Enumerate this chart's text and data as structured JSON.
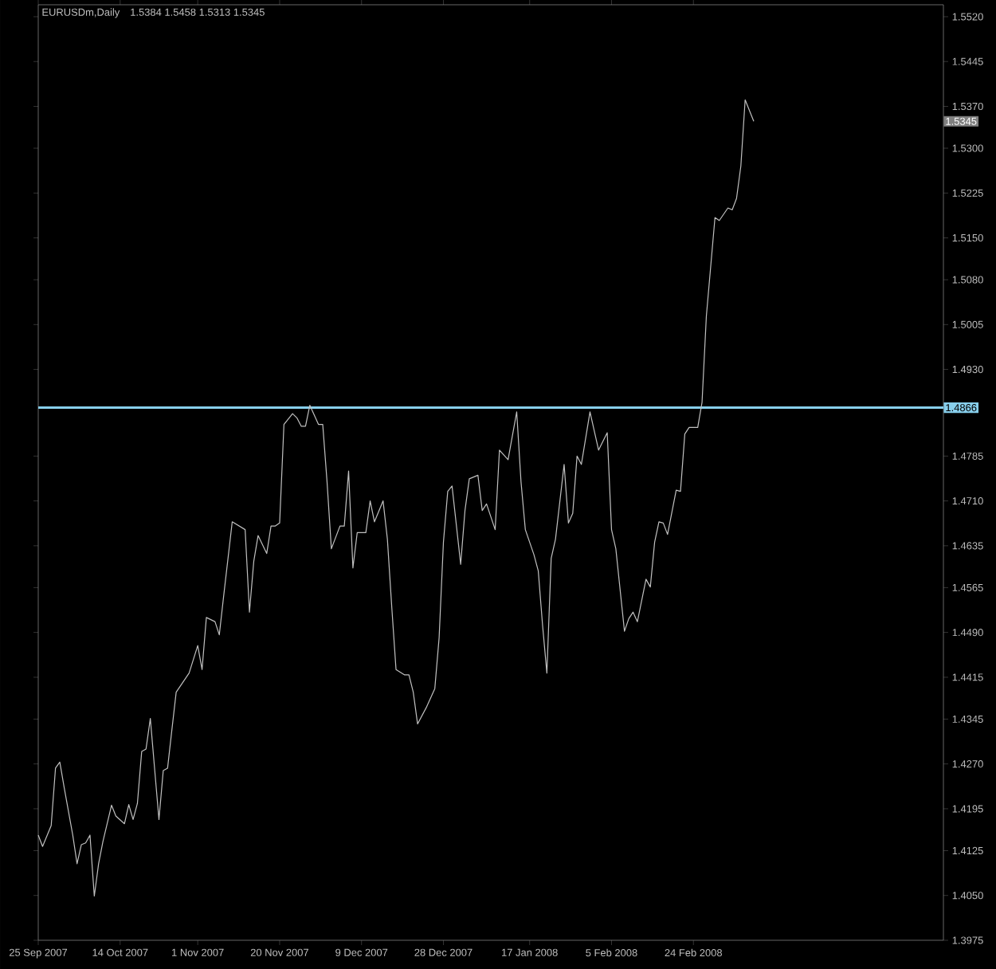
{
  "chart_data": {
    "type": "line",
    "title": "EURUSDm,Daily",
    "subtitle": "1.5384 1.5458 1.5313 1.5345",
    "series": [
      {
        "color": "#c0c0c0",
        "x": [
          "2007-09-25",
          "2007-09-26",
          "2007-09-28",
          "2007-09-29",
          "2007-09-30",
          "2007-10-01",
          "2007-10-03",
          "2007-10-04",
          "2007-10-05",
          "2007-10-06",
          "2007-10-07",
          "2007-10-08",
          "2007-10-09",
          "2007-10-10",
          "2007-10-12",
          "2007-10-13",
          "2007-10-15",
          "2007-10-16",
          "2007-10-17",
          "2007-10-18",
          "2007-10-19",
          "2007-10-20",
          "2007-10-21",
          "2007-10-23",
          "2007-10-24",
          "2007-10-25",
          "2007-10-26",
          "2007-10-27",
          "2007-10-30",
          "2007-11-01",
          "2007-11-02",
          "2007-11-03",
          "2007-11-05",
          "2007-11-06",
          "2007-11-07",
          "2007-11-09",
          "2007-11-12",
          "2007-11-13",
          "2007-11-14",
          "2007-11-15",
          "2007-11-17",
          "2007-11-18",
          "2007-11-19",
          "2007-11-20",
          "2007-11-21",
          "2007-11-23",
          "2007-11-24",
          "2007-11-25",
          "2007-11-26",
          "2007-11-27",
          "2007-11-29",
          "2007-11-30",
          "2007-12-01",
          "2007-12-02",
          "2007-12-04",
          "2007-12-05",
          "2007-12-06",
          "2007-12-07",
          "2007-12-08",
          "2007-12-10",
          "2007-12-11",
          "2007-12-12",
          "2007-12-14",
          "2007-12-15",
          "2007-12-16",
          "2007-12-17",
          "2007-12-19",
          "2007-12-20",
          "2007-12-21",
          "2007-12-22",
          "2007-12-24",
          "2007-12-26",
          "2007-12-27",
          "2007-12-28",
          "2007-12-29",
          "2007-12-30",
          "2008-01-01",
          "2008-01-02",
          "2008-01-03",
          "2008-01-05",
          "2008-01-06",
          "2008-01-07",
          "2008-01-09",
          "2008-01-10",
          "2008-01-12",
          "2008-01-14",
          "2008-01-15",
          "2008-01-16",
          "2008-01-18",
          "2008-01-19",
          "2008-01-20",
          "2008-01-21",
          "2008-01-22",
          "2008-01-23",
          "2008-01-25",
          "2008-01-26",
          "2008-01-27",
          "2008-01-28",
          "2008-01-29",
          "2008-01-31",
          "2008-02-02",
          "2008-02-04",
          "2008-02-05",
          "2008-02-06",
          "2008-02-08",
          "2008-02-09",
          "2008-02-10",
          "2008-02-11",
          "2008-02-13",
          "2008-02-14",
          "2008-02-15",
          "2008-02-16",
          "2008-02-17",
          "2008-02-18",
          "2008-02-20",
          "2008-02-21",
          "2008-02-22",
          "2008-02-23",
          "2008-02-25",
          "2008-02-26",
          "2008-02-27",
          "2008-02-29",
          "2008-03-01",
          "2008-03-03",
          "2008-03-04",
          "2008-03-05",
          "2008-03-06",
          "2008-03-07",
          "2008-03-09"
        ],
        "values": [
          1.4151,
          1.4132,
          1.4167,
          1.4263,
          1.4273,
          1.4231,
          1.4151,
          1.4103,
          1.4135,
          1.4138,
          1.4151,
          1.4049,
          1.4103,
          1.414,
          1.4201,
          1.4183,
          1.417,
          1.4202,
          1.4177,
          1.4204,
          1.4291,
          1.4295,
          1.4346,
          1.4177,
          1.4259,
          1.4263,
          1.4327,
          1.439,
          1.4422,
          1.4468,
          1.4428,
          1.4515,
          1.4508,
          1.4486,
          1.455,
          1.4675,
          1.4662,
          1.4524,
          1.4609,
          1.4652,
          1.4622,
          1.4668,
          1.4668,
          1.4673,
          1.4838,
          1.4856,
          1.4849,
          1.4835,
          1.4835,
          1.487,
          1.4838,
          1.4838,
          1.4742,
          1.463,
          1.4668,
          1.4668,
          1.476,
          1.4598,
          1.4657,
          1.4657,
          1.471,
          1.4675,
          1.471,
          1.4646,
          1.4534,
          1.4428,
          1.4419,
          1.4419,
          1.439,
          1.4337,
          1.4364,
          1.4396,
          1.4481,
          1.4641,
          1.4726,
          1.4735,
          1.4604,
          1.4694,
          1.4747,
          1.4753,
          1.4694,
          1.4705,
          1.4662,
          1.4795,
          1.4779,
          1.4859,
          1.4742,
          1.4662,
          1.462,
          1.4593,
          1.4502,
          1.4422,
          1.4614,
          1.4646,
          1.4771,
          1.4673,
          1.4689,
          1.4785,
          1.4771,
          1.4859,
          1.4795,
          1.4824,
          1.4662,
          1.463,
          1.4492,
          1.4513,
          1.4524,
          1.4508,
          1.4579,
          1.4566,
          1.4641,
          1.4675,
          1.4673,
          1.4654,
          1.4728,
          1.4726,
          1.4822,
          1.4833,
          1.4833,
          1.4875,
          1.5019,
          1.5184,
          1.5179,
          1.52,
          1.5197,
          1.5216,
          1.527,
          1.5381,
          1.5345
        ]
      }
    ],
    "xlim": [
      "2007-09-25",
      "2008-04-22"
    ],
    "ylim": [
      1.3975,
      1.554
    ],
    "xticks": [
      {
        "value": "2007-09-25",
        "label": "25 Sep 2007"
      },
      {
        "value": "2007-10-14",
        "label": "14 Oct 2007"
      },
      {
        "value": "2007-11-01",
        "label": "1 Nov 2007"
      },
      {
        "value": "2007-11-20",
        "label": "20 Nov 2007"
      },
      {
        "value": "2007-12-09",
        "label": "9 Dec 2007"
      },
      {
        "value": "2007-12-28",
        "label": "28 Dec 2007"
      },
      {
        "value": "2008-01-17",
        "label": "17 Jan 2008"
      },
      {
        "value": "2008-02-05",
        "label": "5 Feb 2008"
      },
      {
        "value": "2008-02-24",
        "label": "24 Feb 2008"
      }
    ],
    "yticks": [
      {
        "value": 1.3975,
        "label": "1.3975"
      },
      {
        "value": 1.405,
        "label": "1.4050"
      },
      {
        "value": 1.4125,
        "label": "1.4125"
      },
      {
        "value": 1.4195,
        "label": "1.4195"
      },
      {
        "value": 1.427,
        "label": "1.4270"
      },
      {
        "value": 1.4345,
        "label": "1.4345"
      },
      {
        "value": 1.4415,
        "label": "1.4415"
      },
      {
        "value": 1.449,
        "label": "1.4490"
      },
      {
        "value": 1.4565,
        "label": "1.4565"
      },
      {
        "value": 1.4635,
        "label": "1.4635"
      },
      {
        "value": 1.471,
        "label": "1.4710"
      },
      {
        "value": 1.4785,
        "label": "1.4785"
      },
      {
        "value": 1.493,
        "label": "1.4930"
      },
      {
        "value": 1.5005,
        "label": "1.5005"
      },
      {
        "value": 1.508,
        "label": "1.5080"
      },
      {
        "value": 1.515,
        "label": "1.5150"
      },
      {
        "value": 1.5225,
        "label": "1.5225"
      },
      {
        "value": 1.53,
        "label": "1.5300"
      },
      {
        "value": 1.537,
        "label": "1.5370"
      },
      {
        "value": 1.5445,
        "label": "1.5445"
      },
      {
        "value": 1.552,
        "label": "1.5520"
      }
    ],
    "ref_lines": [
      {
        "axis": "y",
        "value": 1.4866,
        "label": "1.4866",
        "color": "#87ceeb"
      }
    ],
    "annotations": [
      {
        "text": "1.5345",
        "y": 1.5345
      }
    ],
    "grid": false,
    "marker": "none",
    "line_style": "solid"
  }
}
